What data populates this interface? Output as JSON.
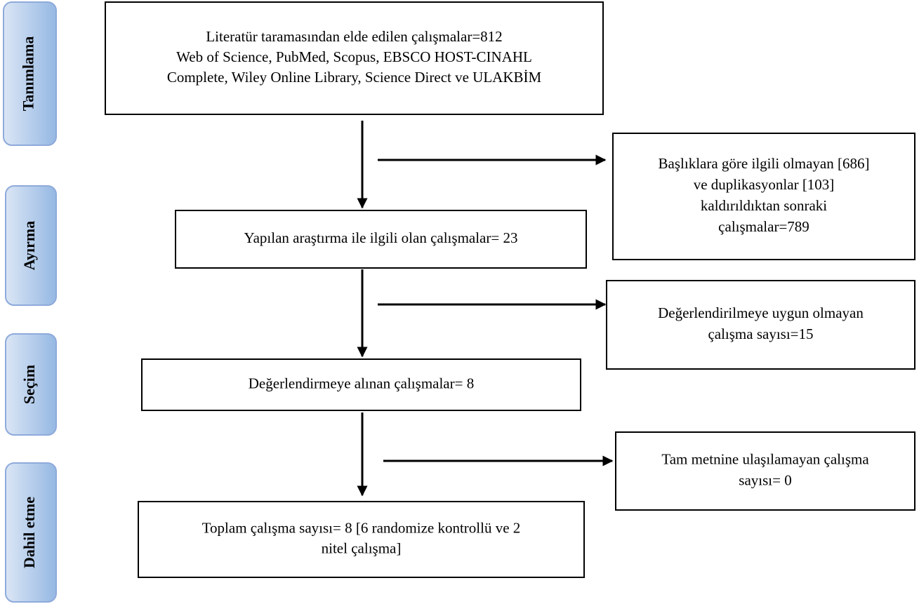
{
  "stages": [
    "Tanımlama",
    "Ayırma",
    "Seçim",
    "Dahil etme"
  ],
  "boxes": [
    {
      "lines": [
        "Literatür taramasından elde edilen çalışmalar=812",
        "Web of Science, PubMed, Scopus, EBSCO HOST-CINAHL",
        "Complete, Wiley Online Library, Science Direct ve ULAKBİM"
      ]
    },
    {
      "lines": [
        "Yapılan araştırma ile ilgili olan çalışmalar= 23"
      ]
    },
    {
      "lines": [
        "Değerlendirmeye alınan çalışmalar= 8"
      ]
    },
    {
      "lines": [
        "Toplam çalışma sayısı= 8 [6 randomize kontrollü ve 2",
        "nitel çalışma]"
      ]
    }
  ],
  "exclusions": [
    {
      "lines": [
        "Başlıklara göre ilgili olmayan [686]",
        "ve duplikasyonlar [103]",
        "kaldırıldıktan sonraki",
        "çalışmalar=789"
      ]
    },
    {
      "lines": [
        "Değerlendirilmeye uygun olmayan",
        "çalışma sayısı=15"
      ]
    },
    {
      "lines": [
        "Tam metnine ulaşılamayan çalışma",
        "sayısı= 0"
      ]
    }
  ]
}
